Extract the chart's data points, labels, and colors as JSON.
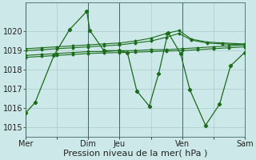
{
  "bg_color": "#cce8e8",
  "plot_bg_color": "#cce8e8",
  "line_color": "#1a6b1a",
  "grid_color": "#aacccc",
  "xlabel": "Pression niveau de la mer( hPa )",
  "xlabel_fontsize": 8,
  "tick_fontsize": 7,
  "ylim": [
    1014.5,
    1021.5
  ],
  "yticks": [
    1015,
    1016,
    1017,
    1018,
    1019,
    1020
  ],
  "xtick_labels": [
    "Mer",
    "",
    "Dim",
    "Jeu",
    "",
    "Ven",
    "",
    "Sam"
  ],
  "xtick_positions": [
    0,
    1,
    2,
    3,
    4,
    5,
    6,
    7
  ],
  "vline_positions": [
    0,
    2,
    3,
    5,
    7
  ],
  "main_x": [
    0,
    0.3,
    0.9,
    1.4,
    1.95,
    2.05,
    2.5,
    3.0,
    3.25,
    3.55,
    3.95,
    4.25,
    4.55,
    4.95,
    5.25,
    5.75,
    6.2,
    6.55,
    7.0
  ],
  "main_y": [
    1015.75,
    1016.3,
    1018.75,
    1020.1,
    1021.05,
    1020.05,
    1019.0,
    1019.0,
    1018.9,
    1016.9,
    1016.1,
    1017.8,
    1019.95,
    1018.85,
    1016.95,
    1015.1,
    1016.2,
    1018.2,
    1018.9
  ],
  "flat1_x": [
    0,
    0.5,
    1.0,
    1.5,
    2.0,
    2.5,
    3.0,
    3.5,
    4.0,
    4.5,
    5.0,
    5.5,
    6.0,
    6.5,
    7.0
  ],
  "flat1_y": [
    1018.75,
    1018.8,
    1018.85,
    1018.9,
    1018.95,
    1018.95,
    1019.0,
    1019.0,
    1019.05,
    1019.05,
    1019.1,
    1019.15,
    1019.2,
    1019.25,
    1019.3
  ],
  "flat2_x": [
    0,
    0.5,
    1.0,
    1.5,
    2.0,
    2.5,
    3.0,
    3.5,
    4.0,
    4.5,
    5.0,
    5.5,
    6.0,
    6.5,
    7.0
  ],
  "flat2_y": [
    1018.65,
    1018.7,
    1018.75,
    1018.8,
    1018.85,
    1018.88,
    1018.9,
    1018.92,
    1018.95,
    1018.98,
    1019.0,
    1019.05,
    1019.1,
    1019.15,
    1019.2
  ],
  "curved1_x": [
    0,
    0.5,
    1.0,
    1.5,
    2.0,
    2.5,
    3.0,
    3.5,
    4.0,
    4.5,
    4.9,
    5.3,
    5.8,
    6.3,
    7.0
  ],
  "curved1_y": [
    1019.0,
    1019.05,
    1019.1,
    1019.15,
    1019.2,
    1019.25,
    1019.3,
    1019.4,
    1019.5,
    1019.7,
    1019.9,
    1019.55,
    1019.4,
    1019.35,
    1019.3
  ],
  "curved2_x": [
    0,
    0.5,
    1.0,
    1.5,
    2.0,
    2.5,
    3.0,
    3.5,
    4.0,
    4.5,
    4.9,
    5.3,
    5.8,
    6.3,
    7.0
  ],
  "curved2_y": [
    1019.1,
    1019.15,
    1019.2,
    1019.25,
    1019.3,
    1019.35,
    1019.4,
    1019.5,
    1019.65,
    1019.9,
    1020.05,
    1019.6,
    1019.45,
    1019.4,
    1019.35
  ]
}
